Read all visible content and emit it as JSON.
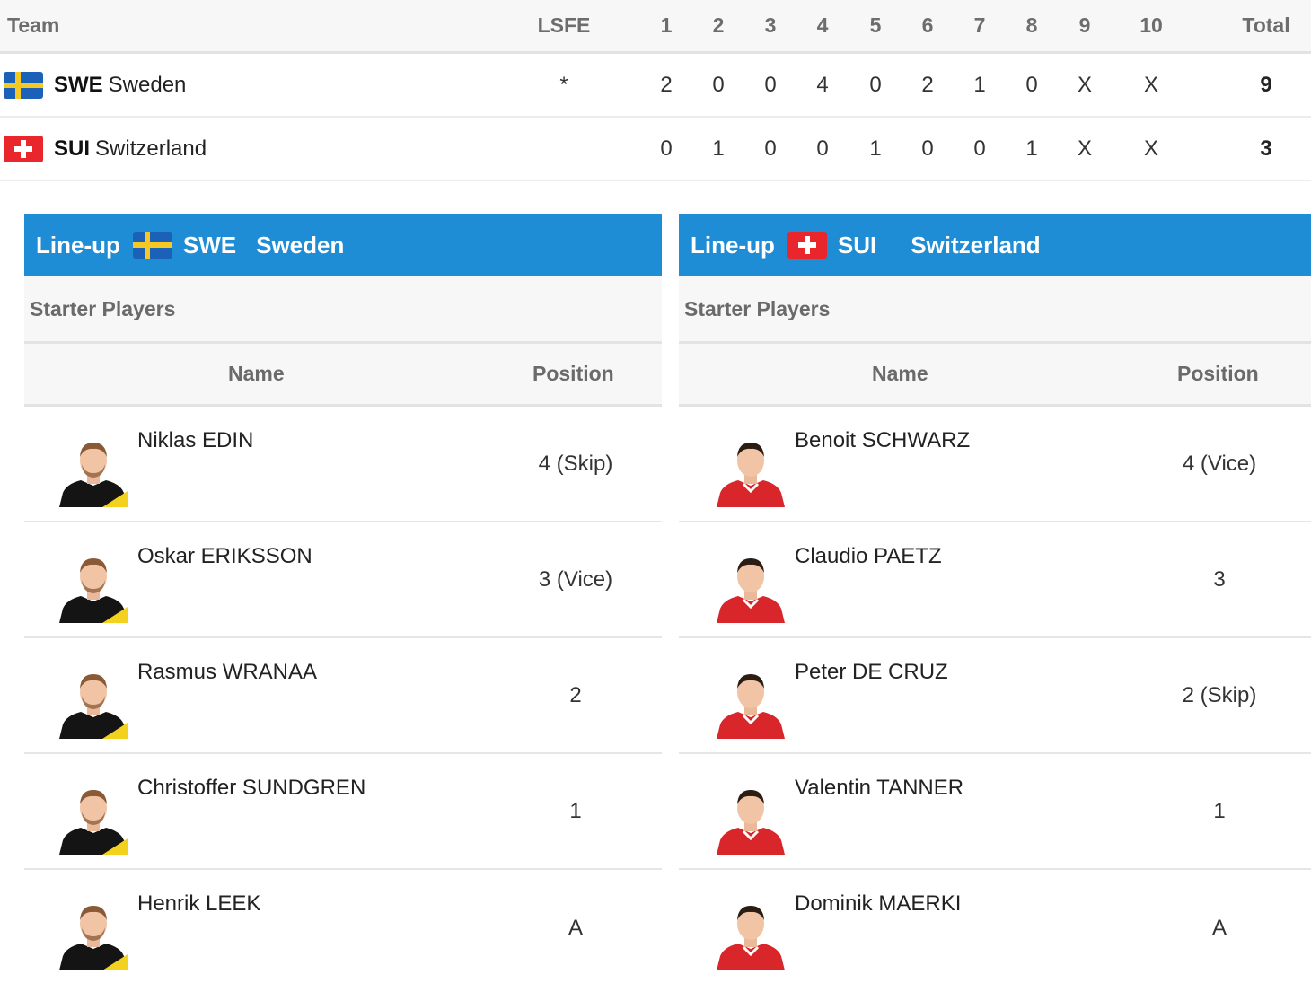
{
  "score": {
    "headers": [
      "Team",
      "LSFE",
      "1",
      "2",
      "3",
      "4",
      "5",
      "6",
      "7",
      "8",
      "9",
      "10",
      "Total"
    ],
    "rows": [
      {
        "code": "SWE",
        "name": "Sweden",
        "lsfe": "*",
        "ends": [
          "2",
          "0",
          "0",
          "4",
          "0",
          "2",
          "1",
          "0",
          "X",
          "X"
        ],
        "total": "9"
      },
      {
        "code": "SUI",
        "name": "Switzerland",
        "lsfe": "",
        "ends": [
          "0",
          "1",
          "0",
          "0",
          "1",
          "0",
          "0",
          "1",
          "X",
          "X"
        ],
        "total": "3"
      }
    ]
  },
  "lineups": [
    {
      "label": "Line-up",
      "code": "SWE",
      "country": "Sweden",
      "section": "Starter Players",
      "col_name": "Name",
      "col_position": "Position",
      "players": [
        {
          "name": "Niklas EDIN",
          "position": "4 (Skip)"
        },
        {
          "name": "Oskar ERIKSSON",
          "position": "3 (Vice)"
        },
        {
          "name": "Rasmus WRANAA",
          "position": "2"
        },
        {
          "name": "Christoffer SUNDGREN",
          "position": "1"
        },
        {
          "name": "Henrik LEEK",
          "position": "A"
        }
      ]
    },
    {
      "label": "Line-up",
      "code": "SUI",
      "country": "Switzerland",
      "section": "Starter Players",
      "col_name": "Name",
      "col_position": "Position",
      "players": [
        {
          "name": "Benoit SCHWARZ",
          "position": "4 (Vice)"
        },
        {
          "name": "Claudio PAETZ",
          "position": "3"
        },
        {
          "name": "Peter DE CRUZ",
          "position": "2 (Skip)"
        },
        {
          "name": "Valentin TANNER",
          "position": "1"
        },
        {
          "name": "Dominik MAERKI",
          "position": "A"
        }
      ]
    }
  ],
  "colors": {
    "header_blue": "#1f8dd6",
    "swe_blue": "#1b61b8",
    "swe_yellow": "#f6c824",
    "sui_red": "#e8262b"
  },
  "icons": {
    "swe": "sweden-flag-icon",
    "sui": "switzerland-flag-icon",
    "player": "player-photo"
  }
}
